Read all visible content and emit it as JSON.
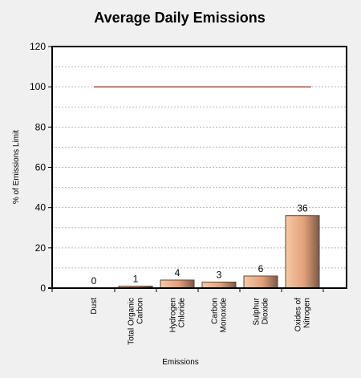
{
  "chart_data": {
    "type": "bar",
    "title": "Average Daily Emissions",
    "xlabel": "Emissions",
    "ylabel": "% of Emissions Limit",
    "ylim": [
      0,
      120
    ],
    "yticks": [
      0,
      20,
      40,
      60,
      80,
      100,
      120
    ],
    "grid": true,
    "categories": [
      [
        "Dust"
      ],
      [
        "Total Organic",
        "Carbon"
      ],
      [
        "Hydrogen",
        "Chloride"
      ],
      [
        "Carbon",
        "Monoxide"
      ],
      [
        "Sulphur",
        "Dioxide"
      ],
      [
        "Oxides of",
        "Nitrogen"
      ]
    ],
    "values": [
      0,
      1,
      4,
      3,
      6,
      36
    ],
    "value_labels": [
      "0",
      "1",
      "4",
      "3",
      "6",
      "36"
    ],
    "limit_line": {
      "value": 100
    },
    "colors": {
      "bar_light": "#f6c9a6",
      "bar_mid": "#e2a07a",
      "bar_dark": "#7b5a48",
      "limit_line": "#8b1a00",
      "grid": "#b8b8b8",
      "plot_bg": "#ffffff",
      "page_bg": "#f0f0f0"
    }
  }
}
